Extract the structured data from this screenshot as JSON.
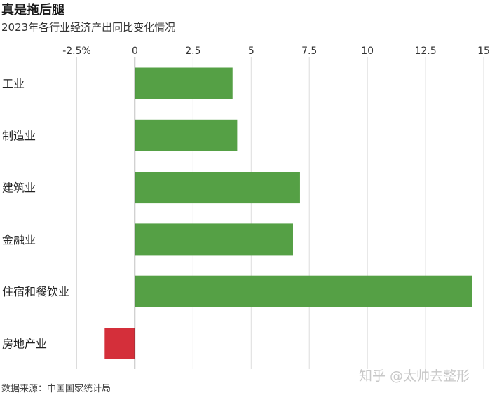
{
  "title": "真是拖后腿",
  "subtitle": "2023年各行业经济产出同比变化情况",
  "source": "数据来源：中国国家统计局",
  "watermark": "知乎 @太帅去整形",
  "colors": {
    "positive": "#55a045",
    "negative": "#d42f3a",
    "grid": "#dcdcdc",
    "axis": "#333333"
  },
  "chart_data": {
    "type": "bar",
    "orientation": "horizontal",
    "title": "真是拖后腿",
    "subtitle": "2023年各行业经济产出同比变化情况",
    "categories": [
      "工业",
      "制造业",
      "建筑业",
      "金融业",
      "住宿和餐饮业",
      "房地产业"
    ],
    "values": [
      4.2,
      4.4,
      7.1,
      6.8,
      14.5,
      -1.3
    ],
    "xlim": [
      -2.5,
      15
    ],
    "ticks": [
      -2.5,
      0,
      2.5,
      5,
      7.5,
      10,
      12.5,
      15
    ],
    "tick_labels": [
      "-2.5%",
      "0",
      "2.5",
      "5",
      "7.5",
      "10",
      "12.5",
      "15"
    ],
    "grid": true,
    "xlabel": "",
    "ylabel": ""
  }
}
